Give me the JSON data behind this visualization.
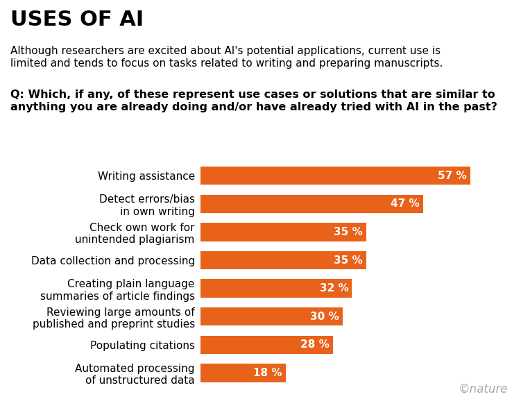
{
  "title": "USES OF AI",
  "subtitle": "Although researchers are excited about AI's potential applications, current use is\nlimited and tends to focus on tasks related to writing and preparing manuscripts.",
  "question": "Q: Which, if any, of these represent use cases or solutions that are similar to\nanything you are already doing and/or have already tried with AI in the past?",
  "categories": [
    "Writing assistance",
    "Detect errors/bias\nin own writing",
    "Check own work for\nunintended plagiarism",
    "Data collection and processing",
    "Creating plain language\nsummaries of article findings",
    "Reviewing large amounts of\npublished and preprint studies",
    "Populating citations",
    "Automated processing\nof unstructured data"
  ],
  "values": [
    57,
    47,
    35,
    35,
    32,
    30,
    28,
    18
  ],
  "bar_color": "#E8621A",
  "label_color": "#FFFFFF",
  "background_color": "#FFFFFF",
  "text_color": "#000000",
  "nature_color": "#AAAAAA",
  "xlim": [
    0,
    65
  ],
  "title_fontsize": 22,
  "subtitle_fontsize": 11,
  "question_fontsize": 11.5,
  "bar_label_fontsize": 11,
  "category_fontsize": 11,
  "nature_text": "©nature"
}
